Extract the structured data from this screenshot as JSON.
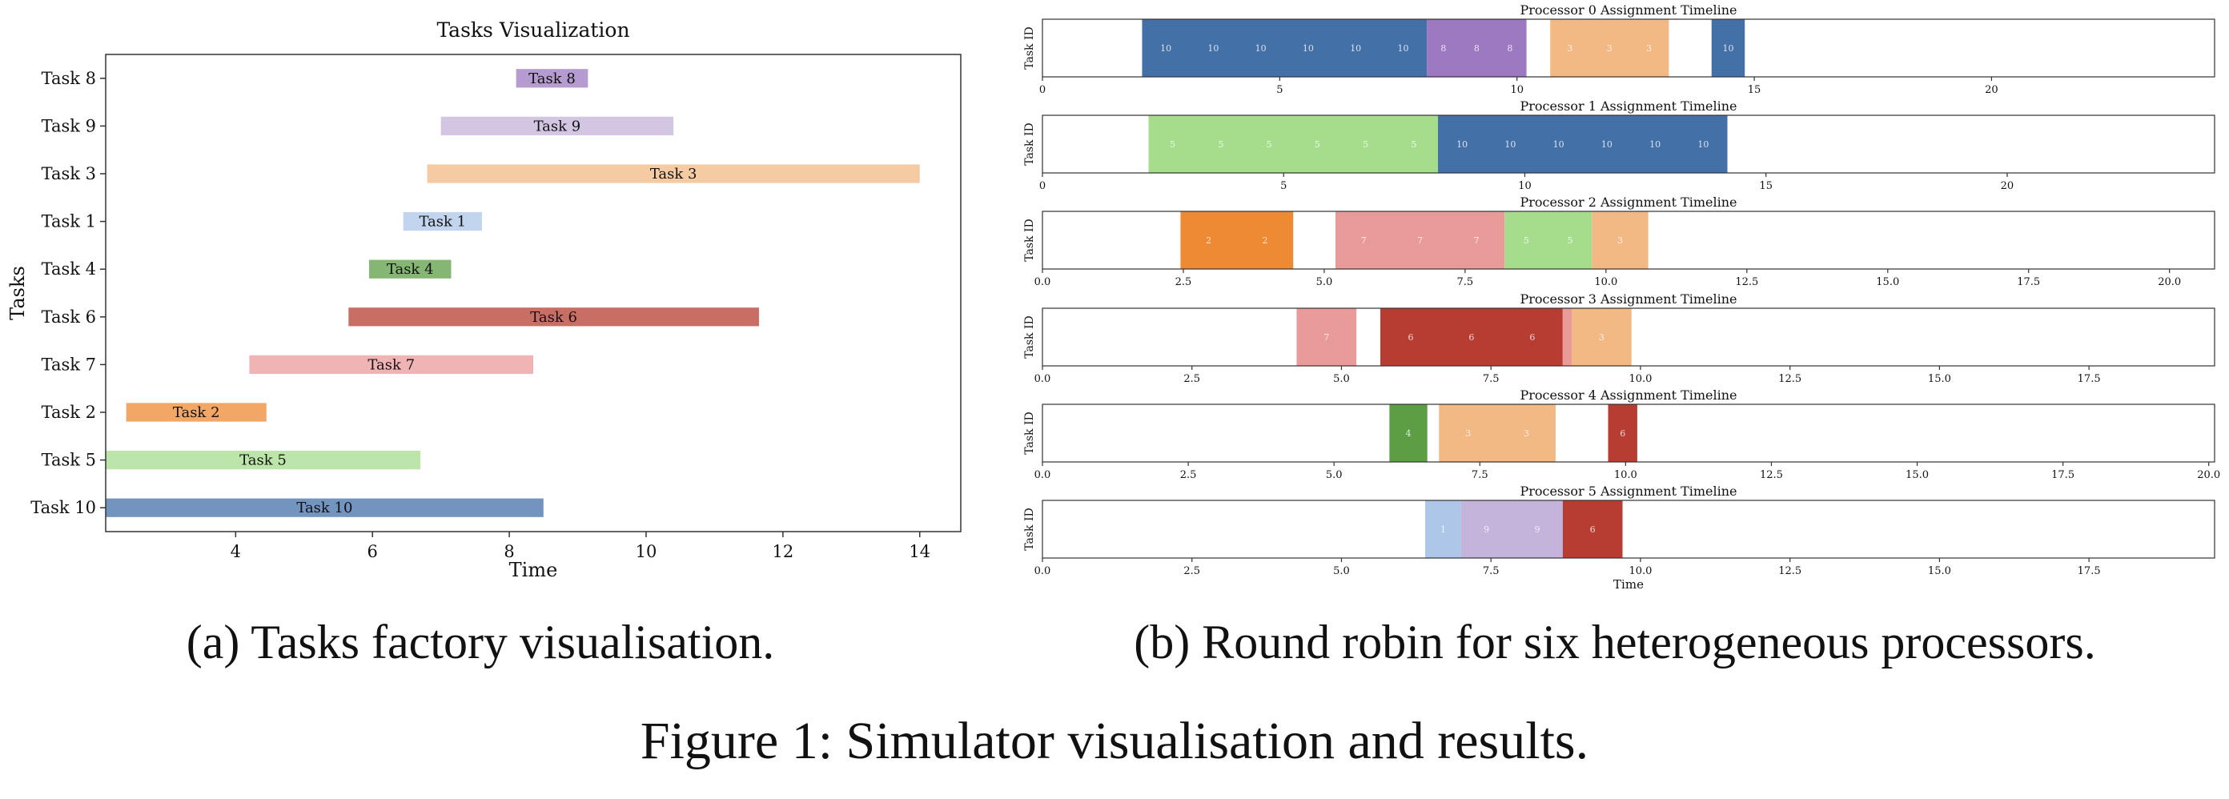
{
  "figure_caption": "Figure 1: Simulator visualisation and results.",
  "subcaption_a": "(a) Tasks factory visualisation.",
  "subcaption_b": "(b) Round robin for six heterogeneous processors.",
  "colors": {
    "task_1": "#aec7e8",
    "task_2": "#ee8a33",
    "task_3": "#f2b984",
    "task_4": "#5d9e45",
    "task_5": "#a5dd8c",
    "task_6": "#b73d32",
    "task_7": "#e99b9a",
    "task_8": "#9d79c1",
    "task_9": "#c4b3da",
    "task_10": "#4470a8"
  },
  "chart_data": [
    {
      "type": "gantt",
      "title": "Tasks Visualization",
      "xlabel": "Time",
      "ylabel": "Tasks",
      "xlim": [
        2.1,
        14.6
      ],
      "xticks": [
        4,
        6,
        8,
        10,
        12,
        14
      ],
      "tick_labels": [
        "4",
        "6",
        "8",
        "10",
        "12",
        "14"
      ],
      "tasks": [
        {
          "name": "Task 8",
          "task": 8,
          "start": 8.1,
          "end": 9.15
        },
        {
          "name": "Task 9",
          "task": 9,
          "start": 7.0,
          "end": 10.4
        },
        {
          "name": "Task 3",
          "task": 3,
          "start": 6.8,
          "end": 14.0
        },
        {
          "name": "Task 1",
          "task": 1,
          "start": 6.45,
          "end": 7.6
        },
        {
          "name": "Task 4",
          "task": 4,
          "start": 5.95,
          "end": 7.15
        },
        {
          "name": "Task 6",
          "task": 6,
          "start": 5.65,
          "end": 11.65
        },
        {
          "name": "Task 7",
          "task": 7,
          "start": 4.2,
          "end": 8.35
        },
        {
          "name": "Task 2",
          "task": 2,
          "start": 2.4,
          "end": 4.45
        },
        {
          "name": "Task 5",
          "task": 5,
          "start": 2.1,
          "end": 6.7
        },
        {
          "name": "Task 10",
          "task": 10,
          "start": 2.1,
          "end": 8.5
        }
      ]
    },
    {
      "type": "timeline",
      "title": "Processor 0 Assignment Timeline",
      "ylabel": "Task ID",
      "xlabel": "",
      "xlim": [
        0,
        24.7
      ],
      "xticks": [
        0,
        5,
        10,
        15,
        20
      ],
      "tick_labels": [
        "0",
        "5",
        "10",
        "15",
        "20"
      ],
      "segments": [
        {
          "task": 10,
          "start": 2.1,
          "end": 8.1,
          "labels": [
            "10",
            "10",
            "10",
            "10",
            "10",
            "10"
          ]
        },
        {
          "task": 8,
          "start": 8.1,
          "end": 10.2,
          "labels": [
            "8",
            "8",
            "8"
          ]
        },
        {
          "task": 3,
          "start": 10.7,
          "end": 13.2,
          "labels": [
            "3",
            "3",
            "3"
          ]
        },
        {
          "task": 10,
          "start": 14.1,
          "end": 14.8,
          "labels": [
            "10"
          ]
        }
      ]
    },
    {
      "type": "timeline",
      "title": "Processor 1 Assignment Timeline",
      "ylabel": "Task ID",
      "xlabel": "",
      "xlim": [
        0,
        24.3
      ],
      "xticks": [
        0,
        5,
        10,
        15,
        20
      ],
      "tick_labels": [
        "0",
        "5",
        "10",
        "15",
        "20"
      ],
      "segments": [
        {
          "task": 5,
          "start": 2.2,
          "end": 8.2,
          "labels": [
            "5",
            "5",
            "5",
            "5",
            "5",
            "5"
          ]
        },
        {
          "task": 10,
          "start": 8.2,
          "end": 14.2,
          "labels": [
            "10",
            "10",
            "10",
            "10",
            "10",
            "10"
          ]
        }
      ]
    },
    {
      "type": "timeline",
      "title": "Processor 2 Assignment Timeline",
      "ylabel": "Task ID",
      "xlabel": "",
      "xlim": [
        0,
        20.8
      ],
      "xticks": [
        0.0,
        2.5,
        5.0,
        7.5,
        10.0,
        12.5,
        15.0,
        17.5,
        20.0
      ],
      "tick_labels": [
        "0.0",
        "2.5",
        "5.0",
        "7.5",
        "10.0",
        "12.5",
        "15.0",
        "17.5",
        "20.0"
      ],
      "segments": [
        {
          "task": 2,
          "start": 2.45,
          "end": 4.45,
          "labels": [
            "2",
            "2"
          ]
        },
        {
          "task": 7,
          "start": 5.2,
          "end": 8.2,
          "labels": [
            "7",
            "7",
            "7"
          ]
        },
        {
          "task": 5,
          "start": 8.2,
          "end": 9.75,
          "labels": [
            "5",
            "5"
          ]
        },
        {
          "task": 3,
          "start": 9.75,
          "end": 10.75,
          "labels": [
            "3"
          ]
        }
      ]
    },
    {
      "type": "timeline",
      "title": "Processor 3 Assignment Timeline",
      "ylabel": "Task ID",
      "xlabel": "",
      "xlim": [
        0,
        19.6
      ],
      "xticks": [
        0.0,
        2.5,
        5.0,
        7.5,
        10.0,
        12.5,
        15.0,
        17.5
      ],
      "tick_labels": [
        "0.0",
        "2.5",
        "5.0",
        "7.5",
        "10.0",
        "12.5",
        "15.0",
        "17.5"
      ],
      "segments": [
        {
          "task": 7,
          "start": 4.25,
          "end": 5.25,
          "labels": [
            "7"
          ]
        },
        {
          "task": 6,
          "start": 5.65,
          "end": 8.7,
          "labels": [
            "6",
            "6",
            "6"
          ]
        },
        {
          "task": 7,
          "start": 8.7,
          "end": 8.85,
          "labels": []
        },
        {
          "task": 3,
          "start": 8.85,
          "end": 9.85,
          "labels": [
            "3"
          ]
        }
      ]
    },
    {
      "type": "timeline",
      "title": "Processor 4 Assignment Timeline",
      "ylabel": "Task ID",
      "xlabel": "",
      "xlim": [
        0,
        20.1
      ],
      "xticks": [
        0.0,
        2.5,
        5.0,
        7.5,
        10.0,
        12.5,
        15.0,
        17.5,
        20.0
      ],
      "tick_labels": [
        "0.0",
        "2.5",
        "5.0",
        "7.5",
        "10.0",
        "12.5",
        "15.0",
        "17.5",
        "20.0"
      ],
      "segments": [
        {
          "task": 4,
          "start": 5.95,
          "end": 6.6,
          "labels": [
            "4"
          ]
        },
        {
          "task": 3,
          "start": 6.8,
          "end": 8.8,
          "labels": [
            "3",
            "3"
          ]
        },
        {
          "task": 6,
          "start": 9.7,
          "end": 10.2,
          "labels": [
            "6"
          ]
        }
      ]
    },
    {
      "type": "timeline",
      "title": "Processor 5 Assignment Timeline",
      "ylabel": "Task ID",
      "xlabel": "Time",
      "xlim": [
        0,
        19.6
      ],
      "xticks": [
        0.0,
        2.5,
        5.0,
        7.5,
        10.0,
        12.5,
        15.0,
        17.5
      ],
      "tick_labels": [
        "0.0",
        "2.5",
        "5.0",
        "7.5",
        "10.0",
        "12.5",
        "15.0",
        "17.5"
      ],
      "segments": [
        {
          "task": 1,
          "start": 6.4,
          "end": 7.0,
          "labels": [
            "1"
          ]
        },
        {
          "task": 9,
          "start": 7.0,
          "end": 8.7,
          "labels": [
            "9",
            "9"
          ]
        },
        {
          "task": 6,
          "start": 8.7,
          "end": 9.7,
          "labels": [
            "6"
          ]
        }
      ]
    }
  ]
}
